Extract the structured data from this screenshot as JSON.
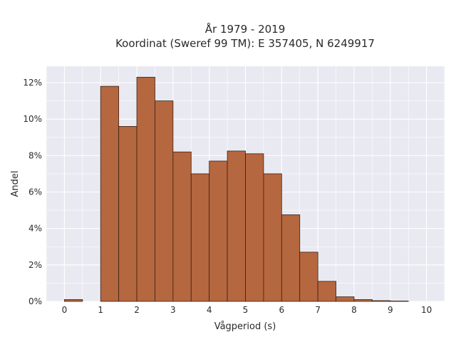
{
  "chart_data": {
    "type": "bar",
    "title_line1": "År 1979 - 2019",
    "title_line2": "Koordinat (Sweref 99 TM): E 357405, N 6249917",
    "xlabel": "Vågperiod (s)",
    "ylabel": "Andel",
    "xlim": [
      -0.5,
      10.5
    ],
    "ylim": [
      0,
      12.9
    ],
    "x_ticks": [
      0,
      1,
      2,
      3,
      4,
      5,
      6,
      7,
      8,
      9,
      10
    ],
    "y_ticks": [
      0,
      2,
      4,
      6,
      8,
      10,
      12
    ],
    "y_tick_suffix": "%",
    "bin_width": 0.5,
    "bins": [
      {
        "x0": 0.0,
        "value": 0.1
      },
      {
        "x0": 1.0,
        "value": 11.8
      },
      {
        "x0": 1.5,
        "value": 9.6
      },
      {
        "x0": 2.0,
        "value": 12.3
      },
      {
        "x0": 2.5,
        "value": 11.0
      },
      {
        "x0": 3.0,
        "value": 8.2
      },
      {
        "x0": 3.5,
        "value": 7.0
      },
      {
        "x0": 4.0,
        "value": 7.7
      },
      {
        "x0": 4.5,
        "value": 8.25
      },
      {
        "x0": 5.0,
        "value": 8.1
      },
      {
        "x0": 5.5,
        "value": 7.0
      },
      {
        "x0": 6.0,
        "value": 4.75
      },
      {
        "x0": 6.5,
        "value": 2.7
      },
      {
        "x0": 7.0,
        "value": 1.1
      },
      {
        "x0": 7.5,
        "value": 0.25
      },
      {
        "x0": 8.0,
        "value": 0.1
      },
      {
        "x0": 8.5,
        "value": 0.04
      },
      {
        "x0": 9.0,
        "value": 0.02
      }
    ],
    "grid": true,
    "colors": {
      "bar_fill": "#b5673f",
      "bar_edge": "#3b2014",
      "plot_bg": "#e9e9f1",
      "grid": "#ffffff"
    }
  }
}
